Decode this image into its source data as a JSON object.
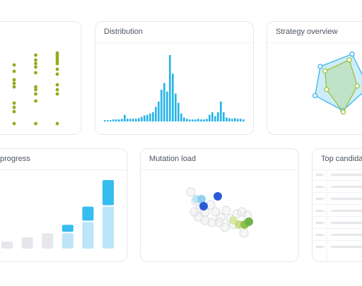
{
  "cards": [
    {
      "title": null,
      "chart_data": {
        "type": "strip",
        "categories": [
          null,
          null,
          null
        ],
        "series": [
          {
            "color": "#8fae1b",
            "values": [
              [
                83,
                74,
                62,
                57,
                52,
                29,
                23,
                17,
                0
              ],
              [
                97,
                90,
                85,
                80,
                72,
                52,
                48,
                42,
                32,
                0
              ],
              [
                100,
                97,
                94,
                91,
                88,
                85,
                77,
                70,
                55,
                48,
                42,
                0
              ]
            ]
          }
        ]
      }
    },
    {
      "title": "Distribution",
      "chart_data": {
        "type": "histogram",
        "color": "#2bb5e8",
        "values": [
          2,
          2,
          2,
          3,
          3,
          3,
          4,
          10,
          4,
          4,
          4,
          4,
          5,
          7,
          9,
          10,
          12,
          14,
          22,
          30,
          48,
          58,
          45,
          100,
          72,
          42,
          28,
          12,
          6,
          4,
          3,
          3,
          3,
          4,
          3,
          3,
          4,
          10,
          14,
          8,
          14,
          30,
          14,
          6,
          5,
          4,
          5,
          4,
          4,
          3
        ]
      }
    },
    {
      "title": "Strategy overview",
      "chart_data": {
        "type": "radar",
        "series": [
          {
            "color": "#38b6e8",
            "values": [
              100,
              95,
              85,
              80,
              75
            ]
          },
          {
            "color": "#9cc43a",
            "values": [
              80,
              60,
              90,
              40,
              55
            ]
          }
        ]
      }
    },
    {
      "title": "progress",
      "chart_data": {
        "type": "stacked-bar",
        "series": [
          {
            "values": [
              10,
              16,
              22,
              22,
              38,
              60
            ],
            "colors": [
              "#e5e7eb",
              "#e5e7eb",
              "#e5e7eb",
              "#bde5f8",
              "#bde5f8",
              "#bde5f8"
            ]
          },
          {
            "values": [
              0,
              0,
              0,
              12,
              22,
              38
            ],
            "colors": [
              "#35bdf0",
              "#35bdf0",
              "#35bdf0",
              "#35bdf0",
              "#35bdf0",
              "#35bdf0"
            ]
          }
        ]
      }
    },
    {
      "title": "Mutation load",
      "chart_data": {
        "type": "scatter",
        "x": [
          270,
          277,
          283,
          290,
          298,
          305,
          312,
          320,
          326,
          335,
          342,
          350,
          330,
          318,
          310,
          300,
          290,
          345,
          280,
          275,
          278,
          285,
          288,
          308,
          330,
          338,
          346,
          352
        ],
        "y": [
          128,
          115,
          104,
          100,
          110,
          100,
          92,
          102,
          90,
          97,
          100,
          95,
          82,
          78,
          85,
          85,
          88,
          70,
          93,
          100,
          118,
          118,
          108,
          122,
          88,
          82,
          82,
          86
        ],
        "colors": [
          "#eee",
          "#eee",
          "#eee",
          "#eee",
          "#eee",
          "#eee",
          "#eee",
          "#eee",
          "#eee",
          "#eee",
          "#eee",
          "#eee",
          "#eee",
          "#eee",
          "#eee",
          "#eee",
          "#eee",
          "#eee",
          "#eee",
          "#eee",
          "#bde3f7",
          "#8fd0f2",
          "#2a5bd7",
          "#2a5bd7",
          "#d8e8a8",
          "#c5dc8a",
          "#8fc24a",
          "#6db34a"
        ]
      }
    },
    {
      "title": "Top candidat"
    }
  ]
}
